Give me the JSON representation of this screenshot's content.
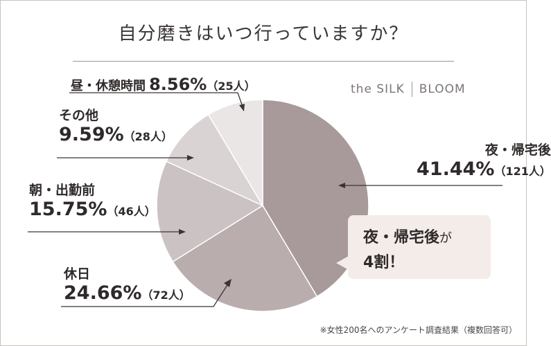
{
  "title": "自分磨きはいつ行っていますか？",
  "brand": {
    "left": "the SILK",
    "right": "BLOOM"
  },
  "callout": {
    "line1": "夜・帰宅後",
    "particle": "が",
    "line2": "4割！"
  },
  "footnote": "※女性200名へのアンケート調査結果（複数回答可）",
  "chart_data": {
    "type": "pie",
    "title": "自分磨きはいつ行っていますか？",
    "start_angle_deg": 0,
    "direction": "clockwise",
    "slices": [
      {
        "label": "夜・帰宅後",
        "percent": 41.44,
        "percent_label": "41.44%",
        "count_label": "（121人）",
        "color": "#a8999b"
      },
      {
        "label": "休日",
        "percent": 24.66,
        "percent_label": "24.66%",
        "count_label": "（72人）",
        "color": "#b9adae"
      },
      {
        "label": "朝・出勤前",
        "percent": 15.75,
        "percent_label": "15.75%",
        "count_label": "（46人）",
        "color": "#cbc2c3"
      },
      {
        "label": "その他",
        "percent": 9.59,
        "percent_label": "9.59%",
        "count_label": "（28人）",
        "color": "#dad3d4"
      },
      {
        "label": "昼・休憩時間",
        "percent": 8.56,
        "percent_label": "8.56%",
        "count_label": "（25人）",
        "color": "#ebe6e6"
      }
    ]
  }
}
